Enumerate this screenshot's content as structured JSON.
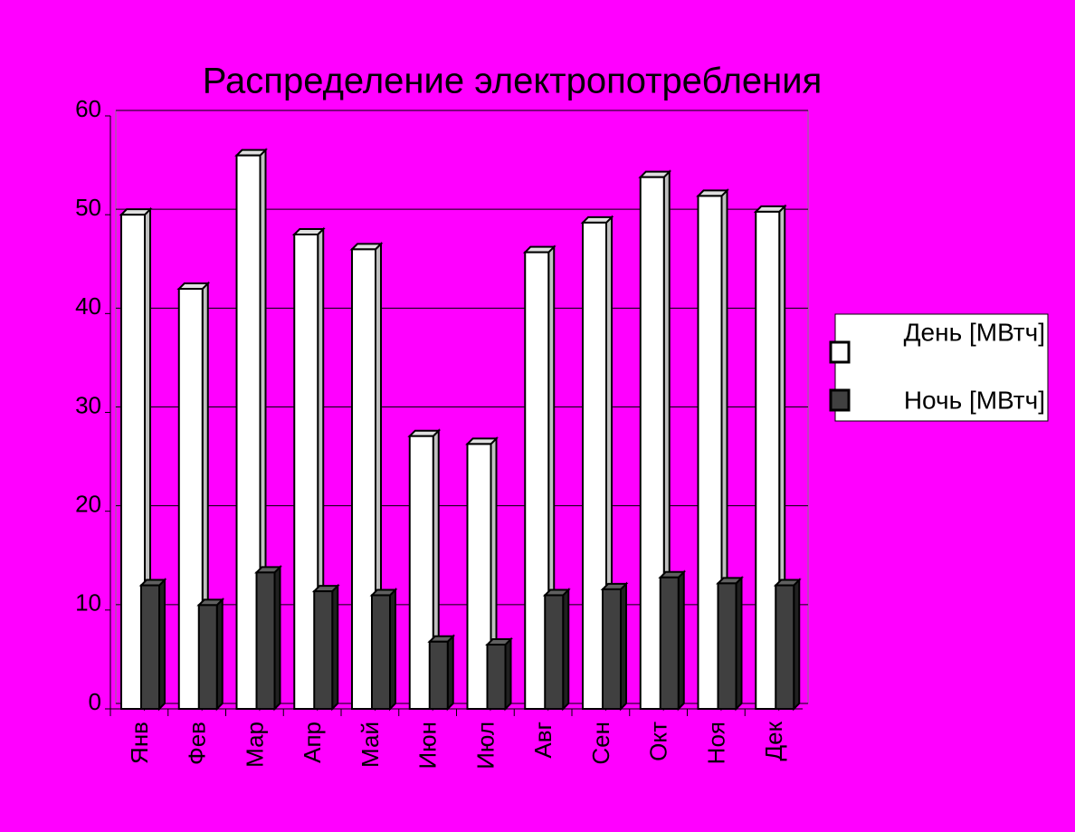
{
  "chart_data": {
    "type": "bar",
    "title": "Распределение электропотребления",
    "categories": [
      "Янв",
      "Фев",
      "Мар",
      "Апр",
      "Май",
      "Июн",
      "Июл",
      "Авг",
      "Сен",
      "Окт",
      "Ноя",
      "Дек"
    ],
    "series": [
      {
        "name": "День [МВтч]",
        "color": "#ffffff",
        "values": [
          50,
          42.5,
          56,
          48,
          46.5,
          27.6,
          26.8,
          46.2,
          49.2,
          53.8,
          51.9,
          50.3
        ]
      },
      {
        "name": "Ночь [МВтч]",
        "color": "#404040",
        "values": [
          12.5,
          10.5,
          13.8,
          11.9,
          11.5,
          6.8,
          6.5,
          11.5,
          12.1,
          13.3,
          12.7,
          12.5
        ]
      }
    ],
    "ylim": [
      0,
      60
    ],
    "yticks": [
      0,
      10,
      20,
      30,
      40,
      50,
      60
    ],
    "grid": true,
    "legend": "right"
  }
}
